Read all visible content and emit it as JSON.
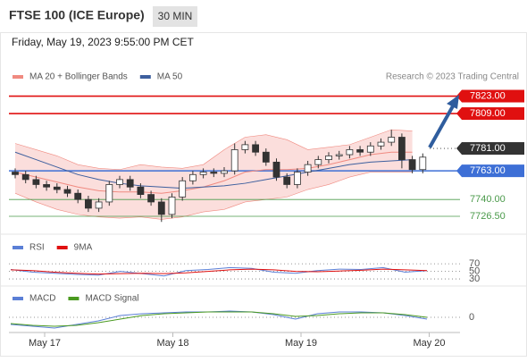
{
  "header": {
    "title": "FTSE 100 (ICE Europe)",
    "interval": "30 MIN",
    "date": "Friday, May 19, 2023 9:55:00 PM CET"
  },
  "chart_data": [
    {
      "type": "candlestick",
      "source": "Research © 2023 Trading Central",
      "ylim": [
        7715,
        7832
      ],
      "up_color": "#ffffff",
      "down_color": "#333333",
      "open": [
        7762,
        7760,
        7756,
        7752,
        7750,
        7748,
        7745,
        7740,
        7733,
        7738,
        7752,
        7756,
        7750,
        7744,
        7738,
        7728,
        7742,
        7755,
        7760,
        7762,
        7761,
        7763,
        7780,
        7784,
        7778,
        7770,
        7758,
        7752,
        7762,
        7768,
        7772,
        7775,
        7776,
        7780,
        7778,
        7783,
        7786,
        7790,
        7772,
        7764
      ],
      "high": [
        7765,
        7763,
        7759,
        7755,
        7753,
        7751,
        7748,
        7743,
        7741,
        7755,
        7759,
        7759,
        7753,
        7747,
        7741,
        7745,
        7758,
        7763,
        7765,
        7765,
        7766,
        7785,
        7787,
        7787,
        7781,
        7773,
        7761,
        7765,
        7771,
        7775,
        7778,
        7779,
        7783,
        7783,
        7786,
        7789,
        7796,
        7793,
        7775,
        7777
      ],
      "low": [
        7757,
        7753,
        7749,
        7747,
        7745,
        7742,
        7737,
        7730,
        7730,
        7735,
        7749,
        7747,
        7741,
        7735,
        7722,
        7725,
        7739,
        7752,
        7757,
        7758,
        7758,
        7760,
        7777,
        7775,
        7767,
        7755,
        7749,
        7749,
        7759,
        7765,
        7769,
        7772,
        7773,
        7775,
        7775,
        7780,
        7783,
        7765,
        7761,
        7761
      ],
      "close": [
        7760,
        7756,
        7752,
        7750,
        7748,
        7745,
        7740,
        7733,
        7738,
        7752,
        7756,
        7750,
        7744,
        7738,
        7728,
        7742,
        7755,
        7760,
        7762,
        7761,
        7763,
        7780,
        7784,
        7778,
        7770,
        7758,
        7752,
        7762,
        7768,
        7772,
        7775,
        7776,
        7780,
        7778,
        7783,
        7786,
        7790,
        7772,
        7764,
        7774
      ],
      "line_x": [
        0,
        2,
        4,
        6,
        8,
        10,
        12,
        14,
        16,
        18,
        20,
        22,
        24,
        26,
        28,
        30,
        32,
        34,
        36,
        38
      ],
      "series": [
        {
          "name": "MA 20 + Bollinger Bands",
          "color": "#f08a80",
          "values": [
            7762,
            7758,
            7754,
            7750,
            7747,
            7746,
            7746,
            7745,
            7747,
            7750,
            7755,
            7762,
            7764,
            7764,
            7765,
            7768,
            7772,
            7776,
            7778,
            7778
          ],
          "upper": [
            7785,
            7780,
            7775,
            7768,
            7765,
            7764,
            7768,
            7766,
            7765,
            7768,
            7780,
            7790,
            7792,
            7788,
            7780,
            7782,
            7784,
            7790,
            7796,
            7795
          ],
          "lower": [
            7745,
            7738,
            7732,
            7728,
            7726,
            7725,
            7726,
            7724,
            7726,
            7730,
            7732,
            7738,
            7740,
            7742,
            7748,
            7752,
            7758,
            7762,
            7762,
            7762
          ]
        },
        {
          "name": "MA 50",
          "color": "#3d5f9e",
          "values": [
            7778,
            7772,
            7766,
            7760,
            7756,
            7753,
            7751,
            7750,
            7749,
            7750,
            7751,
            7753,
            7756,
            7759,
            7762,
            7765,
            7768,
            7770,
            7771,
            7772
          ]
        }
      ],
      "levels": [
        {
          "value": 7823,
          "label": "7823.00",
          "color": "#e01010",
          "boxed": true,
          "style": "solid"
        },
        {
          "value": 7809,
          "label": "7809.00",
          "color": "#e01010",
          "boxed": true,
          "style": "solid"
        },
        {
          "value": 7781,
          "label": "7781.00",
          "color": "#333333",
          "boxed": true,
          "style": "dotted"
        },
        {
          "value": 7763,
          "label": "7763.00",
          "color": "#3d6fd6",
          "boxed": true,
          "style": "solid"
        },
        {
          "value": 7740,
          "label": "7740.00",
          "color": "#4a9a4a",
          "boxed": false,
          "style": "thin"
        },
        {
          "value": 7726.5,
          "label": "7726.50",
          "color": "#4a9a4a",
          "boxed": false,
          "style": "thin"
        }
      ],
      "x_labels": [
        "May 17",
        "May 18",
        "May 19",
        "May 20"
      ]
    },
    {
      "type": "line",
      "ylim": [
        16,
        94
      ],
      "yticks": [
        70,
        50,
        30
      ],
      "series": [
        {
          "name": "RSI",
          "color": "#5b7fd6",
          "values": [
            55,
            48,
            45,
            42,
            40,
            50,
            44,
            38,
            52,
            55,
            60,
            58,
            48,
            45,
            52,
            56,
            55,
            60,
            48,
            52
          ]
        },
        {
          "name": "9MA",
          "color": "#e01010",
          "values": [
            54,
            52,
            48,
            45,
            43,
            44,
            45,
            44,
            46,
            50,
            54,
            56,
            54,
            50,
            49,
            51,
            53,
            56,
            54,
            52
          ]
        }
      ]
    },
    {
      "type": "line",
      "ylim": [
        -20,
        20
      ],
      "yticks": [
        0
      ],
      "series": [
        {
          "name": "MACD",
          "color": "#5b7fd6",
          "values": [
            -8,
            -10,
            -12,
            -8,
            -4,
            2,
            4,
            5,
            6,
            6,
            7,
            6,
            3,
            -2,
            4,
            6,
            6,
            5,
            2,
            -2
          ]
        },
        {
          "name": "MACD Signal",
          "color": "#4a9a20",
          "values": [
            -7,
            -9,
            -10,
            -9,
            -6,
            -2,
            2,
            4,
            5,
            6,
            6,
            6,
            4,
            1,
            2,
            4,
            5,
            5,
            3,
            0
          ]
        }
      ]
    }
  ]
}
